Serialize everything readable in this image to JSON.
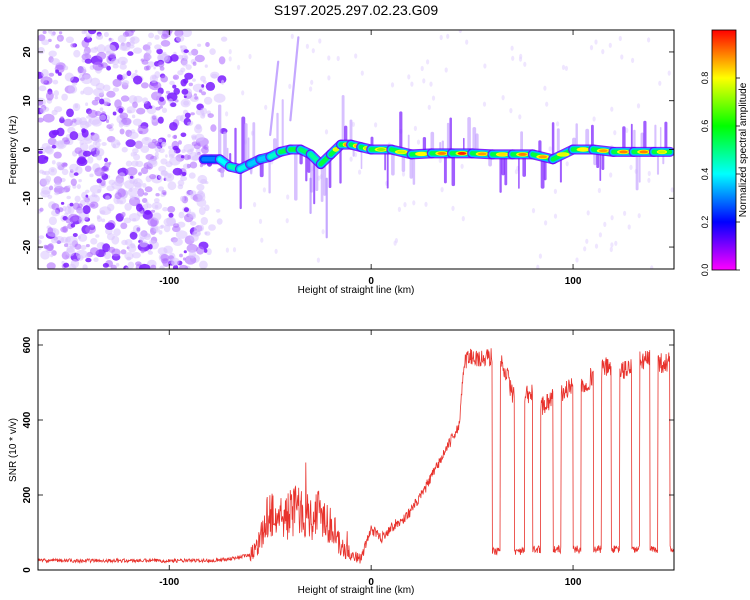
{
  "title": "S197.2025.297.02.23.G09",
  "chart_data": [
    {
      "type": "heatmap",
      "name": "spectrogram",
      "xlabel": "Height of straight line (km)",
      "ylabel": "Frequency (Hz)",
      "xlim": [
        -165,
        150
      ],
      "ylim": [
        -24.5,
        24.5
      ],
      "xticks": [
        -100,
        0,
        100
      ],
      "yticks": [
        -20,
        -10,
        0,
        10,
        20
      ],
      "colorbar": {
        "label": "Normalized spectral amplitude",
        "ticks": [
          "0.0",
          "0.2",
          "0.4",
          "0.6",
          "0.8"
        ],
        "tick_values": [
          0.0,
          0.2,
          0.4,
          0.6,
          0.8
        ],
        "range": [
          0,
          1
        ],
        "colors": [
          "#ff00ff",
          "#0000ff",
          "#00ffff",
          "#00ff00",
          "#ffff00",
          "#ff0000"
        ]
      },
      "noise_region_x": [
        -165,
        -72
      ],
      "track": {
        "x": [
          -83,
          -75,
          -70,
          -65,
          -60,
          -55,
          -50,
          -45,
          -40,
          -35,
          -30,
          -25,
          -20,
          -15,
          -10,
          -5,
          0,
          10,
          20,
          30,
          40,
          50,
          60,
          70,
          80,
          90,
          100,
          110,
          120,
          130,
          140,
          148
        ],
        "freq": [
          -2,
          -2,
          -3.5,
          -4,
          -3,
          -2,
          -1.5,
          -0.5,
          0,
          0,
          -1,
          -3,
          -1,
          1,
          1,
          0.5,
          0,
          0,
          -1,
          -0.8,
          -0.8,
          -0.8,
          -1,
          -1,
          -1,
          -2,
          0,
          0,
          -0.5,
          -0.5,
          -0.5,
          -0.5
        ],
        "amp": [
          0.2,
          0.3,
          0.45,
          0.45,
          0.35,
          0.3,
          0.35,
          0.5,
          0.6,
          0.6,
          0.45,
          0.5,
          0.7,
          0.85,
          0.9,
          0.8,
          0.7,
          0.7,
          0.8,
          0.8,
          1.0,
          0.95,
          0.8,
          0.85,
          0.95,
          0.8,
          0.75,
          0.85,
          0.9,
          0.9,
          0.9,
          0.6
        ]
      }
    },
    {
      "type": "line",
      "name": "snr",
      "xlabel": "Height of straight line (km)",
      "ylabel": "SNR (10 * v/v)",
      "xlim": [
        -165,
        150
      ],
      "ylim": [
        0,
        640
      ],
      "xticks": [
        -100,
        0,
        100
      ],
      "yticks": [
        0,
        200,
        400,
        600
      ],
      "color": "#e8322c",
      "series": {
        "x": [
          -165,
          -140,
          -120,
          -100,
          -80,
          -70,
          -60,
          -55,
          -50,
          -45,
          -40,
          -35,
          -30,
          -25,
          -20,
          -15,
          -10,
          -5,
          0,
          5,
          10,
          15,
          20,
          25,
          30,
          35,
          40,
          44,
          46,
          50,
          55,
          60,
          62,
          66,
          70,
          75,
          80,
          85,
          90,
          95,
          100,
          105,
          110,
          115,
          120,
          125,
          130,
          135,
          140,
          145,
          150
        ],
        "y": [
          25,
          25,
          25,
          25,
          25,
          30,
          40,
          80,
          160,
          130,
          150,
          170,
          140,
          160,
          120,
          60,
          40,
          30,
          110,
          85,
          115,
          130,
          160,
          200,
          250,
          300,
          350,
          390,
          560,
          570,
          560,
          570,
          575,
          540,
          470,
          460,
          470,
          440,
          460,
          470,
          500,
          490,
          520,
          540,
          540,
          530,
          550,
          560,
          560,
          550,
          560
        ]
      },
      "dropouts": [
        {
          "x": [
            60,
            64
          ],
          "y": 50
        },
        {
          "x": [
            71,
            76
          ],
          "y": 50
        },
        {
          "x": [
            80,
            84
          ],
          "y": 55
        },
        {
          "x": [
            90,
            94
          ],
          "y": 55
        },
        {
          "x": [
            100,
            104
          ],
          "y": 55
        },
        {
          "x": [
            110,
            114
          ],
          "y": 55
        },
        {
          "x": [
            119,
            123
          ],
          "y": 55
        },
        {
          "x": [
            129,
            133
          ],
          "y": 55
        },
        {
          "x": [
            138,
            142
          ],
          "y": 55
        },
        {
          "x": [
            148,
            150
          ],
          "y": 55
        }
      ]
    }
  ]
}
